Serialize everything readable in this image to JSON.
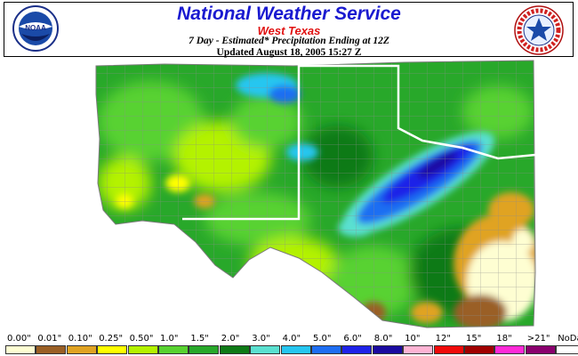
{
  "header": {
    "title": "National Weather Service",
    "region": "West Texas",
    "subtitle": "7 Day - Estimated* Precipitation Ending at 12Z",
    "updated": "Updated August 18, 2005 15:27 Z",
    "left_logo": {
      "text": "NOAA",
      "icon": "noaa-logo"
    },
    "right_logo": {
      "text": "NATIONAL WEATHER SERVICE",
      "icon": "nws-logo"
    }
  },
  "legend": {
    "labels": [
      "0.00\"",
      "0.01\"",
      "0.10\"",
      "0.25\"",
      "0.50\"",
      "1.0\"",
      "1.5\"",
      "2.0\"",
      "3.0\"",
      "4.0\"",
      "5.0\"",
      "6.0\"",
      "8.0\"",
      "10\"",
      "12\"",
      "15\"",
      "18\"",
      ">21\"",
      "NoData"
    ],
    "colors": [
      "#fefed2",
      "#9a5f25",
      "#e0a322",
      "#ffff00",
      "#b4f200",
      "#58d230",
      "#28a82a",
      "#0e7a16",
      "#5ae0d0",
      "#26c6f0",
      "#1e6ef2",
      "#1e22e8",
      "#1a0aa0",
      "#ffb4d4",
      "#f00a0a",
      "#a00000",
      "#ff2ad8",
      "#8a006e",
      "#ffffff"
    ]
  },
  "map": {
    "description_colors": {
      "background": "#ffffff",
      "state_boundary": "#ffffff",
      "county_lines": "#8c8c8c"
    }
  }
}
